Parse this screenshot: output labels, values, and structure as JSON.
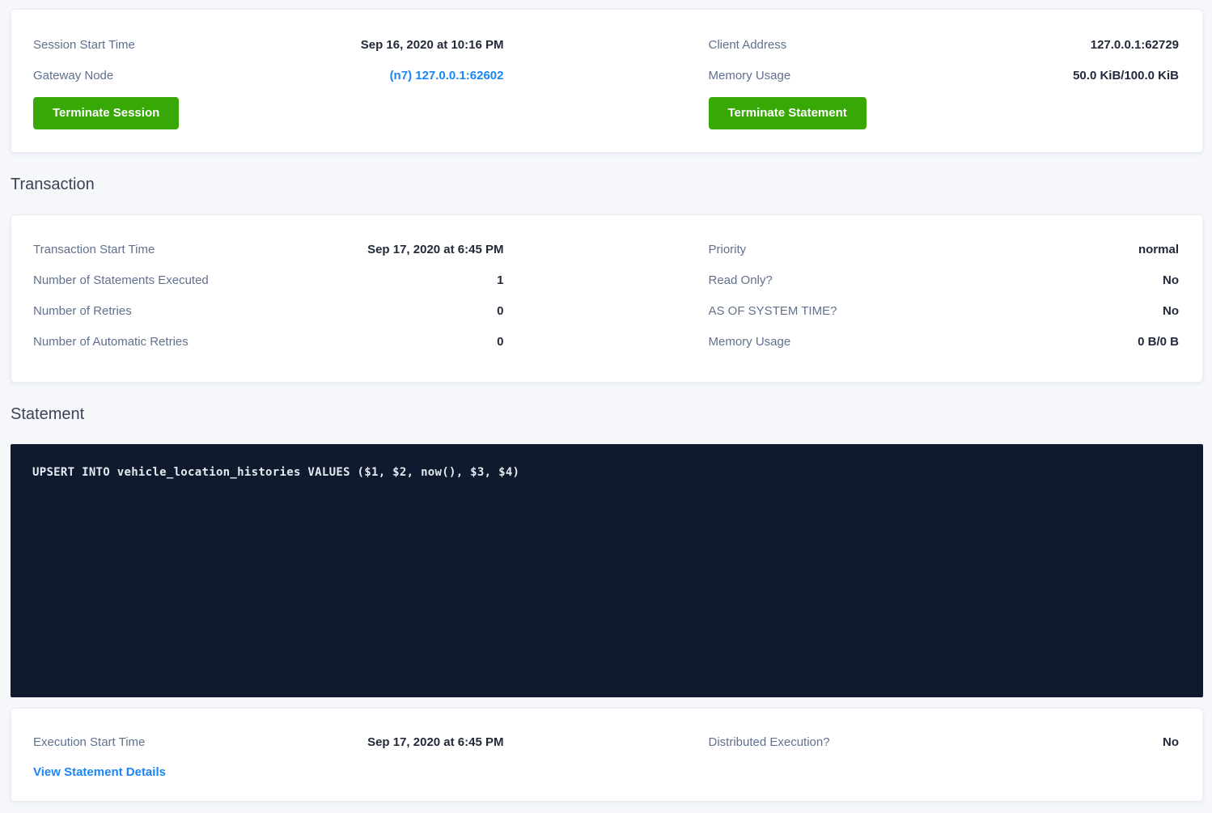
{
  "colors": {
    "page_bg": "#f5f7fa",
    "accent_green": "#37a806",
    "link_blue": "#1a85f4",
    "code_bg": "#101a2e",
    "label_gray_blue": "#60708d",
    "value_dark": "#222a3a"
  },
  "session_card": {
    "left_rows": [
      {
        "label": "Session Start Time",
        "value": "Sep 16, 2020 at 10:16 PM"
      },
      {
        "label": "Gateway Node",
        "value": "(n7) 127.0.0.1:62602"
      }
    ],
    "right_rows": [
      {
        "label": "Client Address",
        "value": "127.0.0.1:62729"
      },
      {
        "label": "Memory Usage",
        "value": "50.0 KiB/100.0 KiB"
      }
    ],
    "terminate_session_button": "Terminate Session",
    "terminate_statement_button": "Terminate Statement"
  },
  "transaction_section": {
    "title": "Transaction",
    "left_rows": [
      {
        "label": "Transaction Start Time",
        "value": "Sep 17, 2020 at 6:45 PM"
      },
      {
        "label": "Number of Statements Executed",
        "value": "1"
      },
      {
        "label": "Number of Retries",
        "value": "0"
      },
      {
        "label": "Number of Automatic Retries",
        "value": "0"
      }
    ],
    "right_rows": [
      {
        "label": "Priority",
        "value": "normal"
      },
      {
        "label": "Read Only?",
        "value": "No"
      },
      {
        "label": "AS OF SYSTEM TIME?",
        "value": "No"
      },
      {
        "label": "Memory Usage",
        "value": "0 B/0 B"
      }
    ]
  },
  "statement_section": {
    "title": "Statement",
    "sql": "UPSERT INTO vehicle_location_histories VALUES ($1, $2, now(), $3, $4)",
    "exec_left_row": {
      "label": "Execution Start Time",
      "value": "Sep 17, 2020 at 6:45 PM"
    },
    "exec_right_row": {
      "label": "Distributed Execution?",
      "value": "No"
    },
    "details_link": "View Statement Details"
  }
}
